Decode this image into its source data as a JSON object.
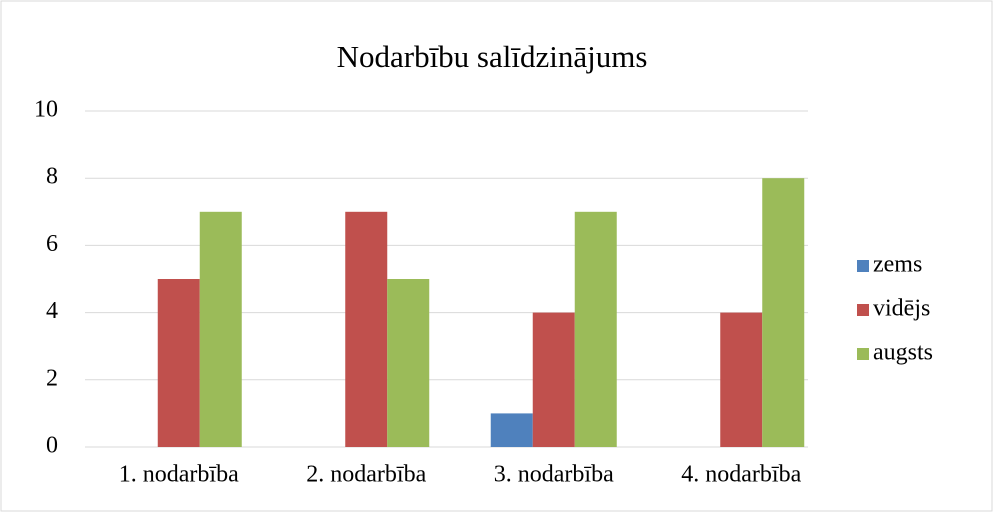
{
  "chart_data": {
    "type": "bar",
    "title": "Nodarbību salīdzinājums",
    "categories": [
      "1. nodarbība",
      "2. nodarbība",
      "3. nodarbība",
      "4. nodarbība"
    ],
    "series": [
      {
        "name": "zems",
        "color": "#4f81bd",
        "values": [
          0,
          0,
          1,
          0
        ]
      },
      {
        "name": "vidējs",
        "color": "#c0504d",
        "values": [
          5,
          7,
          4,
          4
        ]
      },
      {
        "name": "augsts",
        "color": "#9bbb59",
        "values": [
          7,
          5,
          7,
          8
        ]
      }
    ],
    "ylim": [
      0,
      10
    ],
    "yticks": [
      0,
      2,
      4,
      6,
      8,
      10
    ],
    "grid": true,
    "legend": "right"
  }
}
